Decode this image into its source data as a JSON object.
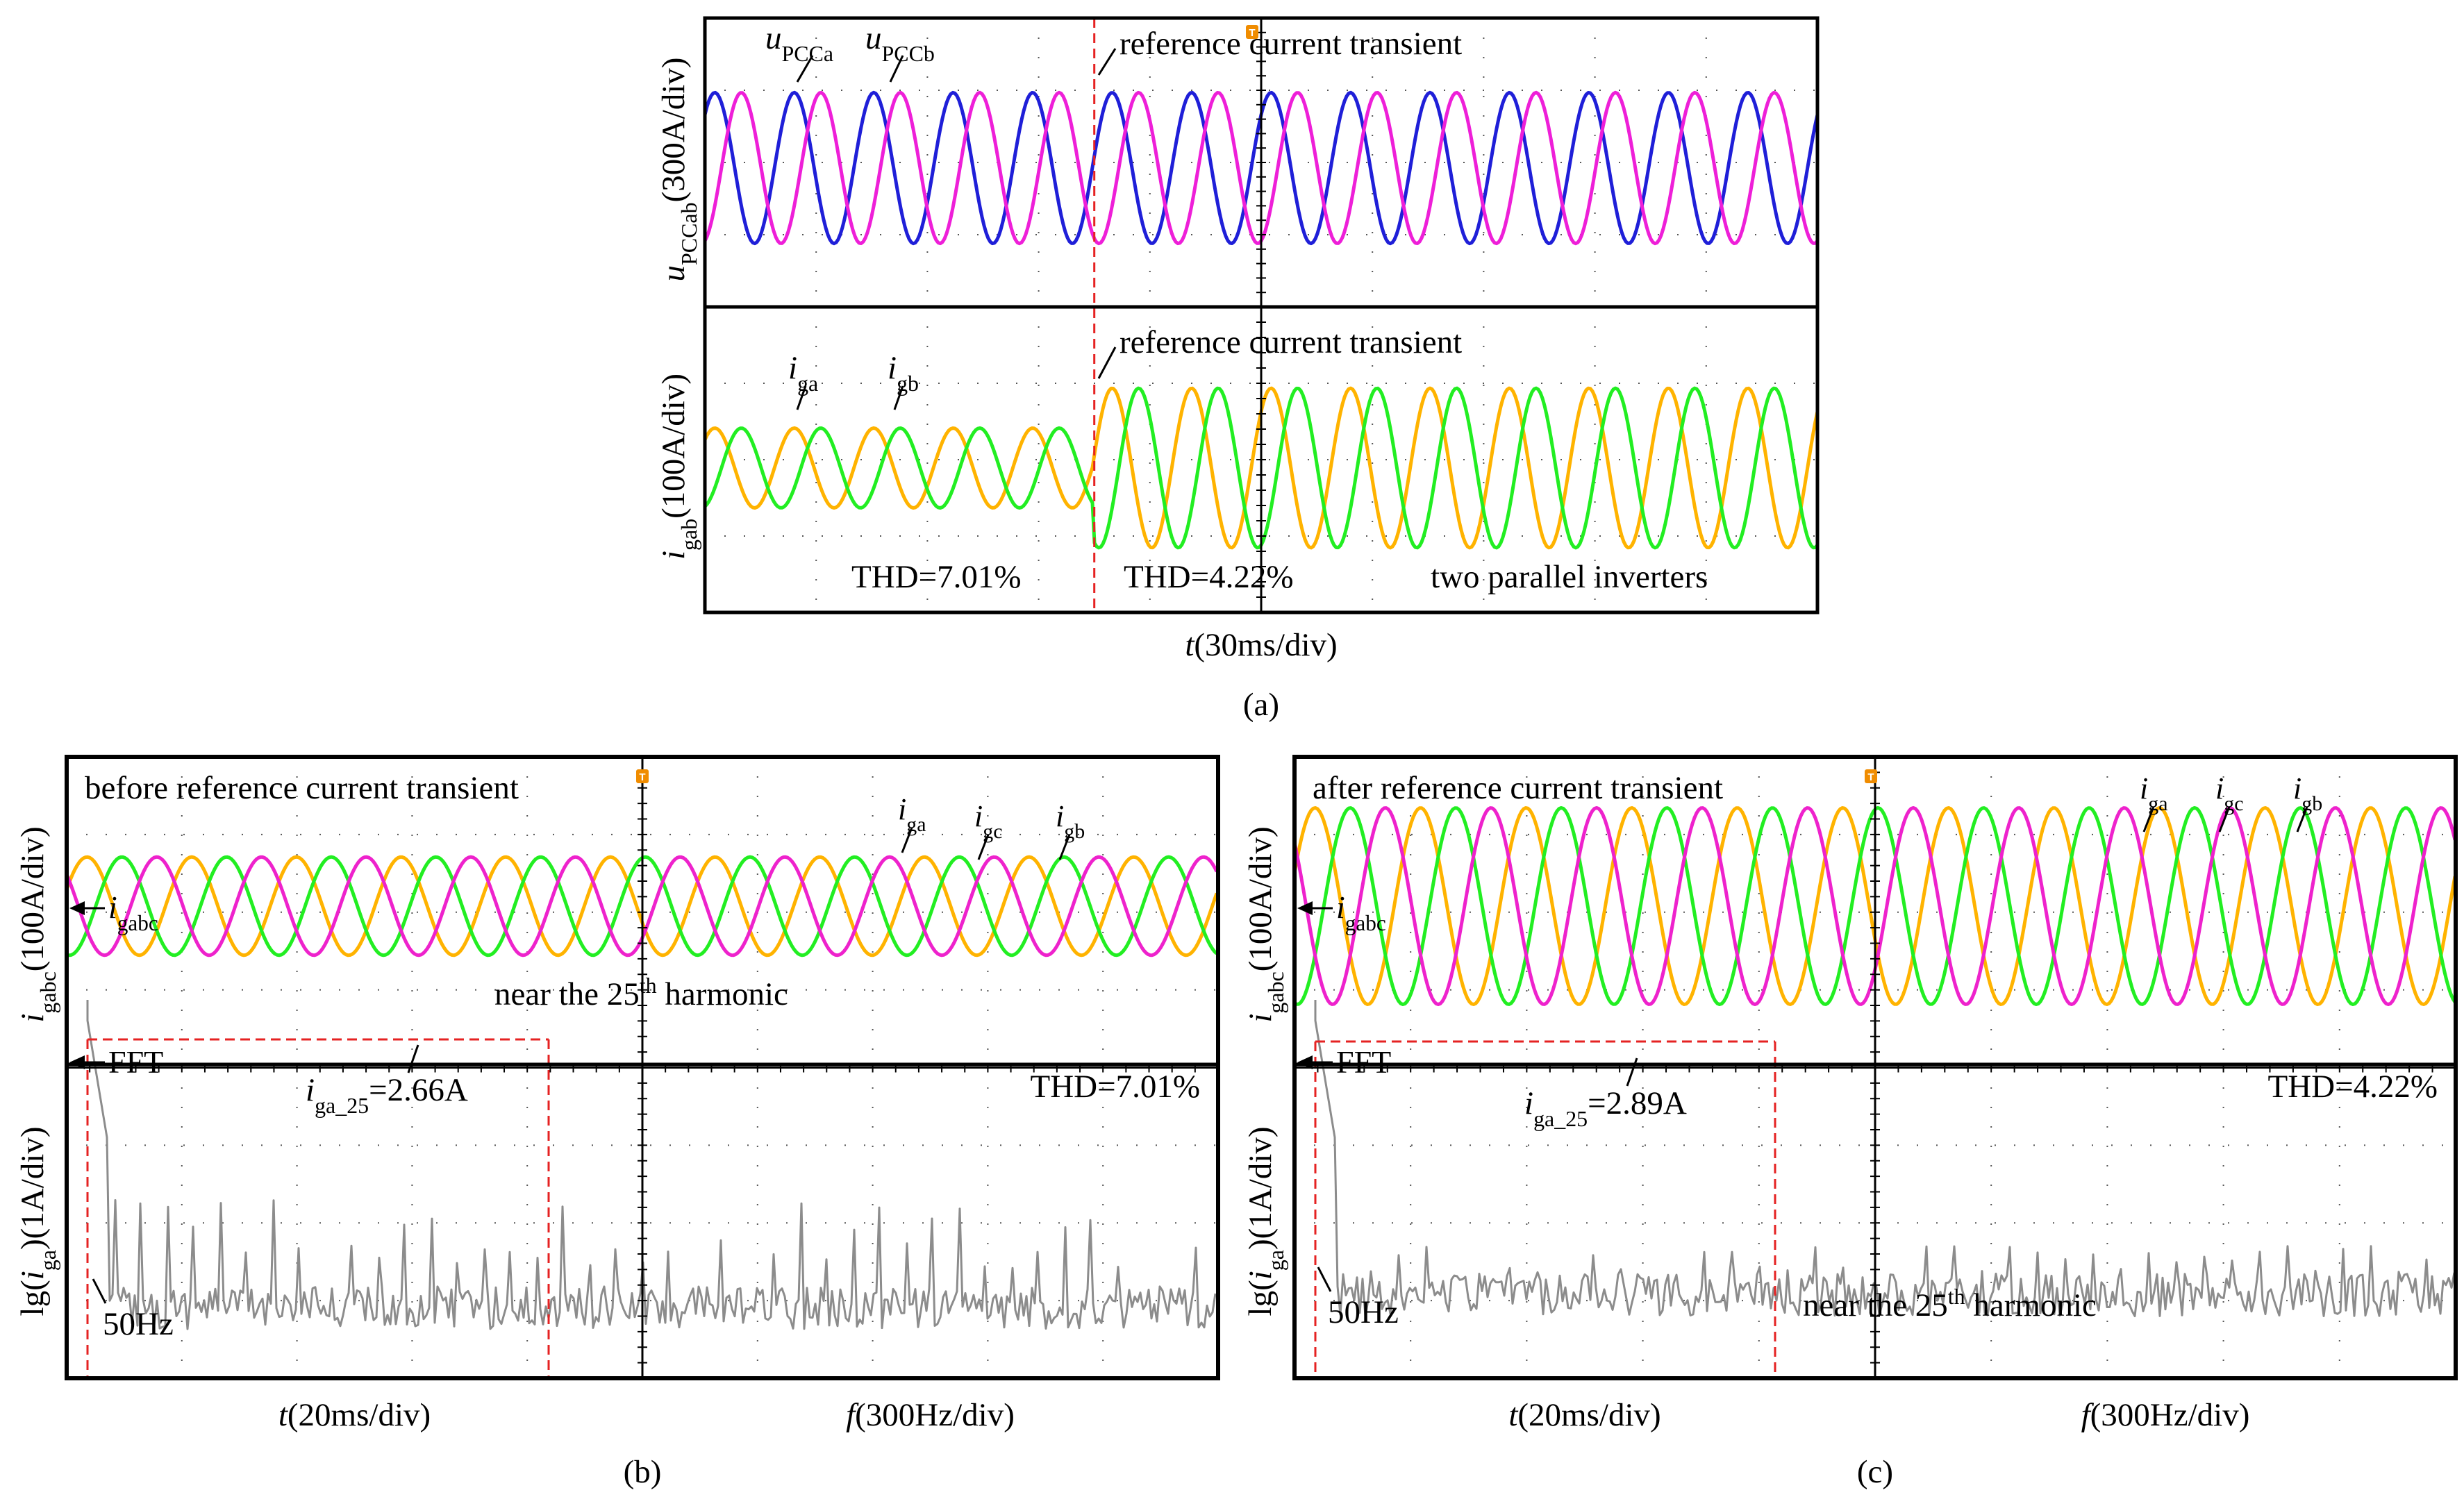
{
  "colors": {
    "blue": "#1f1fd8",
    "magenta": "#ee1fd8",
    "orange": "#ffb300",
    "green": "#22ee22",
    "pink": "#ee22cc",
    "spectrum": "#8c8c8c",
    "grid": "#555555",
    "marker": "#e52222",
    "trigger": "#f08c00"
  },
  "panels": {
    "a": {
      "caption": "(a)",
      "x_axis": {
        "var": "t",
        "unit": "(30ms/div)"
      },
      "trigger_mark": "T",
      "top": {
        "ylabel": {
          "var": "u",
          "sub": "PCCab",
          "unit": "(300A/div)"
        },
        "annotation": "reference current transient",
        "labels": [
          {
            "var": "u",
            "sub": "PCCa"
          },
          {
            "var": "u",
            "sub": "PCCb"
          }
        ]
      },
      "bottom": {
        "ylabel": {
          "var": "i",
          "sub": "gab",
          "unit": "(100A/div)"
        },
        "annotation": "reference current transient",
        "labels": [
          {
            "var": "i",
            "sub": "ga"
          },
          {
            "var": "i",
            "sub": "gb"
          }
        ],
        "thd_before": "THD=7.01%",
        "thd_after": "THD=4.22%",
        "note": "two parallel inverters"
      }
    },
    "b": {
      "caption": "(b)",
      "trigger_mark": "T",
      "title": "before reference current transient",
      "wave_ylabel": {
        "var": "i",
        "sub": "gabc",
        "unit": "(100A/div)"
      },
      "spec_ylabel": {
        "pre": "lg(",
        "var": "i",
        "sub": "ga",
        "post": ")(1A/div)"
      },
      "labels": [
        {
          "var": "i",
          "sub": "ga"
        },
        {
          "var": "i",
          "sub": "gc"
        },
        {
          "var": "i",
          "sub": "gb"
        }
      ],
      "marker_wave": {
        "var": "i",
        "sub": "gabc"
      },
      "marker_fft": "FFT",
      "harmonic_label": {
        "text": "near the 25",
        "sup": "th",
        "tail": " harmonic"
      },
      "harmonic_value": {
        "var": "i",
        "sub": "ga_25",
        "value": "=2.66A"
      },
      "thd": "THD=7.01%",
      "freq_label": "50Hz",
      "x_left": {
        "var": "t",
        "unit": "(20ms/div)"
      },
      "x_right": {
        "var": "f",
        "unit": "(300Hz/div)"
      }
    },
    "c": {
      "caption": "(c)",
      "trigger_mark": "T",
      "title": "after reference current transient",
      "wave_ylabel": {
        "var": "i",
        "sub": "gabc",
        "unit": "(100A/div)"
      },
      "spec_ylabel": {
        "pre": "lg(",
        "var": "i",
        "sub": "ga",
        "post": ")(1A/div)"
      },
      "labels": [
        {
          "var": "i",
          "sub": "ga"
        },
        {
          "var": "i",
          "sub": "gc"
        },
        {
          "var": "i",
          "sub": "gb"
        }
      ],
      "marker_wave": {
        "var": "i",
        "sub": "gabc"
      },
      "marker_fft": "FFT",
      "harmonic_label": {
        "text": "near the 25",
        "sup": "th",
        "tail": " harmonic"
      },
      "harmonic_value": {
        "var": "i",
        "sub": "ga_25",
        "value": "=2.89A"
      },
      "thd": "THD=4.22%",
      "freq_label": "50Hz",
      "x_left": {
        "var": "t",
        "unit": "(20ms/div)"
      },
      "x_right": {
        "var": "f",
        "unit": "(300Hz/div)"
      }
    }
  },
  "chart_data": [
    {
      "type": "line",
      "panel": "a-top",
      "title": "",
      "xlabel": "t(30ms/div)",
      "ylabel": "uPCCab(300A/div)",
      "divisions": {
        "x": 10,
        "y": 4
      },
      "transient_at_div": 3.5,
      "series": [
        {
          "name": "uPCCa",
          "color": "#1f1fd8",
          "amplitude_div": 1.1,
          "cycles_per_div": 1.4,
          "phase_deg": 0
        },
        {
          "name": "uPCCb",
          "color": "#ee1fd8",
          "amplitude_div": 1.1,
          "cycles_per_div": 1.4,
          "phase_deg": -120
        }
      ]
    },
    {
      "type": "line",
      "panel": "a-bottom",
      "title": "",
      "xlabel": "t(30ms/div)",
      "ylabel": "igab(100A/div)",
      "divisions": {
        "x": 10,
        "y": 4
      },
      "transient_at_div": 3.5,
      "series": [
        {
          "name": "iga",
          "color": "#ffb300",
          "amplitude_before_div": 0.55,
          "amplitude_after_div": 1.1,
          "cycles_per_div": 1.4,
          "phase_deg": 0
        },
        {
          "name": "igb",
          "color": "#22ee22",
          "amplitude_before_div": 0.55,
          "amplitude_after_div": 1.1,
          "cycles_per_div": 1.4,
          "phase_deg": -120
        }
      ],
      "thd": [
        "7.01%",
        "4.22%"
      ]
    },
    {
      "type": "line",
      "panel": "b-wave",
      "xlabel": "t(20ms/div)",
      "ylabel": "igabc(100A/div)",
      "series": [
        {
          "name": "iga",
          "color": "#ffb300",
          "amplitude_div": 0.55,
          "cycles_per_div": 1.1,
          "phase_deg": 0
        },
        {
          "name": "igb",
          "color": "#22ee22",
          "amplitude_div": 0.55,
          "cycles_per_div": 1.1,
          "phase_deg": -120
        },
        {
          "name": "igc",
          "color": "#ee22cc",
          "amplitude_div": 0.55,
          "cycles_per_div": 1.1,
          "phase_deg": 120
        }
      ]
    },
    {
      "type": "line",
      "panel": "b-fft",
      "xlabel": "f(300Hz/div)",
      "ylabel": "lg(iga)(1A/div)",
      "fundamental_hz": 50,
      "harmonic_25_A": 2.66,
      "thd": "7.01%",
      "spectrum_level_div": 1.0,
      "spike_height_div": 1.0
    },
    {
      "type": "line",
      "panel": "c-wave",
      "xlabel": "t(20ms/div)",
      "ylabel": "igabc(100A/div)",
      "series": [
        {
          "name": "iga",
          "color": "#ffb300",
          "amplitude_div": 1.1,
          "cycles_per_div": 1.1,
          "phase_deg": 0
        },
        {
          "name": "igb",
          "color": "#22ee22",
          "amplitude_div": 1.1,
          "cycles_per_div": 1.1,
          "phase_deg": -120
        },
        {
          "name": "igc",
          "color": "#ee22cc",
          "amplitude_div": 1.1,
          "cycles_per_div": 1.1,
          "phase_deg": 120
        }
      ]
    },
    {
      "type": "line",
      "panel": "c-fft",
      "xlabel": "f(300Hz/div)",
      "ylabel": "lg(iga)(1A/div)",
      "fundamental_hz": 50,
      "harmonic_25_A": 2.89,
      "thd": "4.22%",
      "spectrum_level_div": 1.3,
      "spike_height_div": 0.45
    }
  ]
}
